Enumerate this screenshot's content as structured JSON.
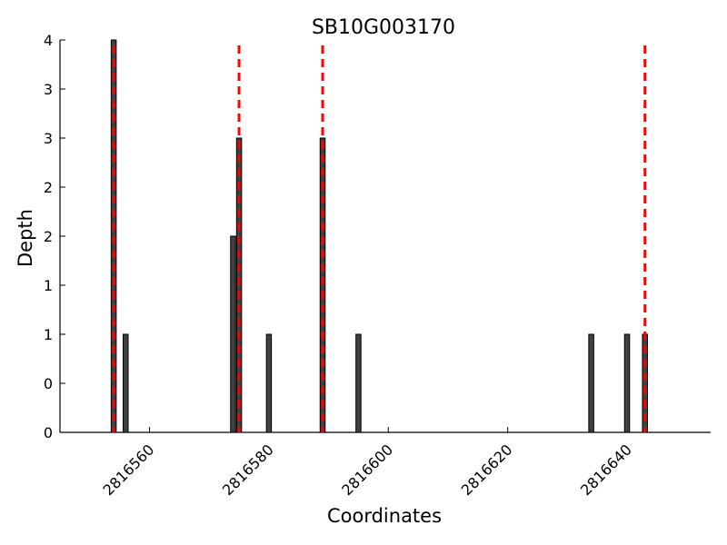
{
  "chart_data": {
    "type": "bar",
    "title": "SB10G003170",
    "xlabel": "Coordinates",
    "ylabel": "Depth",
    "xlim": [
      2816545,
      2816654
    ],
    "ylim": [
      0,
      4
    ],
    "x_ticks": [
      2816560,
      2816580,
      2816600,
      2816620,
      2816640
    ],
    "y_ticks": [
      {
        "value": 0,
        "label": "0"
      },
      {
        "value": 0.5,
        "label": "0"
      },
      {
        "value": 1,
        "label": "1"
      },
      {
        "value": 1.5,
        "label": "1"
      },
      {
        "value": 2,
        "label": "2"
      },
      {
        "value": 2.5,
        "label": "2"
      },
      {
        "value": 3,
        "label": "3"
      },
      {
        "value": 3.5,
        "label": "3"
      },
      {
        "value": 4,
        "label": "4"
      }
    ],
    "bars": {
      "x": [
        2816554,
        2816556,
        2816574,
        2816575,
        2816580,
        2816589,
        2816595,
        2816634,
        2816640,
        2816643
      ],
      "values": [
        4,
        1,
        2,
        3,
        1,
        3,
        1,
        1,
        1,
        1
      ],
      "color": "#404040"
    },
    "markers": {
      "x": [
        2816554,
        2816575,
        2816589,
        2816643
      ],
      "color": "#ff0000",
      "style": "dashed"
    },
    "grid": false
  }
}
